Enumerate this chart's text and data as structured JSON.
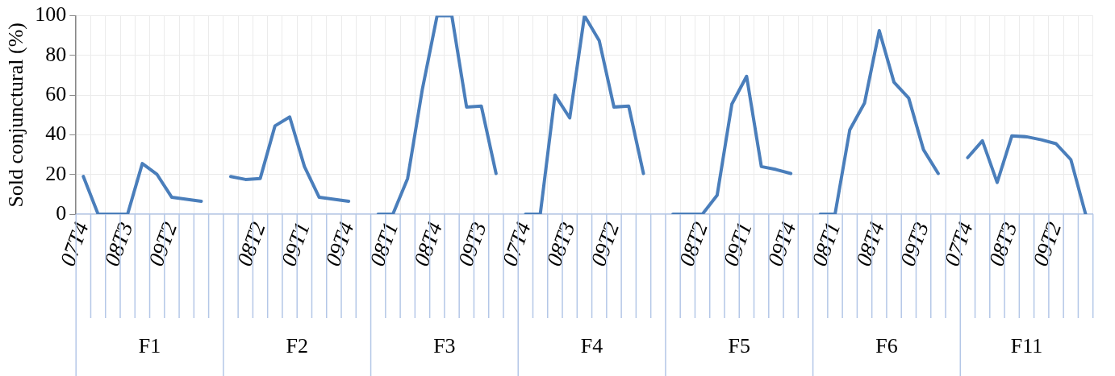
{
  "chart_data": {
    "type": "line",
    "ylabel": "Sold conjunctural (%)",
    "categories": [
      "07T4",
      null,
      null,
      "08T3",
      null,
      null,
      "09T2",
      null,
      null,
      null,
      null,
      null,
      "08T2",
      null,
      null,
      "09T1",
      null,
      null,
      "09T4",
      null,
      null,
      "08T1",
      null,
      null,
      "08T4",
      null,
      null,
      "09T3",
      null,
      null,
      "07T4",
      null,
      null,
      "08T3",
      null,
      null,
      "09T2",
      null,
      null,
      null,
      null,
      null,
      "08T2",
      null,
      null,
      "09T1",
      null,
      null,
      "09T4",
      null,
      null,
      "08T1",
      null,
      null,
      "08T4",
      null,
      null,
      "09T3",
      null,
      null,
      "07T4",
      null,
      null,
      "08T3",
      null,
      null,
      "09T2",
      null,
      null
    ],
    "series": [
      {
        "color": "#4a7ebb",
        "values": [
          19,
          0,
          0,
          0,
          25.5,
          20,
          8.5,
          7.5,
          6.5,
          null,
          19,
          17.5,
          18,
          44.5,
          49,
          24,
          8.5,
          7.5,
          6.5,
          null,
          0,
          0,
          18,
          63,
          100,
          100,
          54,
          54.5,
          20.5,
          null,
          0,
          0,
          60,
          48.5,
          100,
          87.5,
          54,
          54.5,
          20.5,
          null,
          0,
          0,
          0,
          9.5,
          55.5,
          69.5,
          24,
          22.5,
          20.5,
          null,
          0,
          0,
          42.5,
          56,
          92.5,
          66.5,
          58.5,
          32.5,
          20.5,
          null,
          28.5,
          37,
          16,
          39.5,
          39,
          37.5,
          35.5,
          27.5,
          0
        ]
      }
    ],
    "ylim": [
      0,
      100
    ],
    "yticks": [
      0,
      20,
      40,
      60,
      80,
      100
    ],
    "grid": true,
    "marker": "none",
    "annotations": [
      "F1",
      "F2",
      "F3",
      "F4",
      "F5",
      "F6",
      "F11"
    ]
  }
}
